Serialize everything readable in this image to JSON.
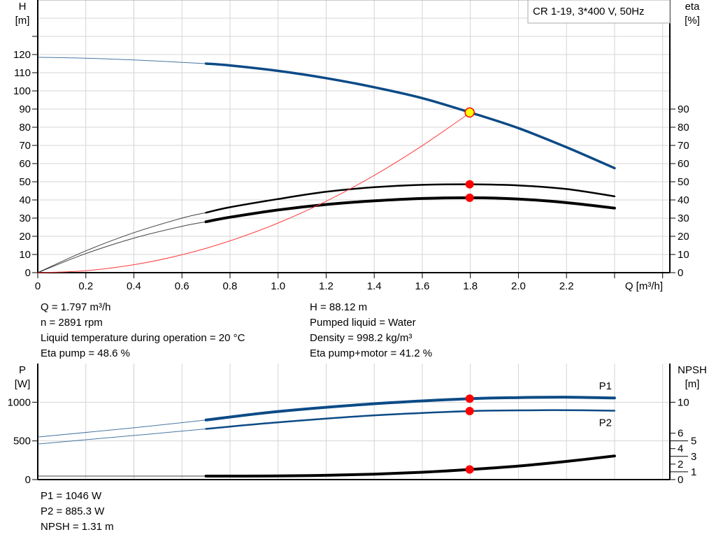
{
  "chart_data": [
    {
      "type": "line",
      "title": "CR 1-19, 3*400 V, 50Hz",
      "xlabel": "Q [m³/h]",
      "ylabel_left": "H\n[m]",
      "ylabel_right": "eta\n[%]",
      "xlim": [
        0,
        2.63
      ],
      "ylim_left": [
        0,
        150
      ],
      "ylim_right": [
        0,
        150
      ],
      "xticks": [
        "0",
        "0.2",
        "0.4",
        "0.6",
        "0.8",
        "1.0",
        "1.2",
        "1.4",
        "1.6",
        "1.8",
        "2.0",
        "2.2"
      ],
      "yticks_left": [
        "0",
        "10",
        "20",
        "30",
        "40",
        "50",
        "60",
        "70",
        "80",
        "90",
        "100",
        "110",
        "120"
      ],
      "yticks_right": [
        "0",
        "10",
        "20",
        "30",
        "40",
        "50",
        "60",
        "70",
        "80",
        "90"
      ],
      "grid": true,
      "series": [
        {
          "key": "H",
          "color": "#0b4a86",
          "x": [
            0,
            0.2,
            0.4,
            0.6,
            0.7,
            0.8,
            1.0,
            1.2,
            1.4,
            1.6,
            1.8,
            2.0,
            2.2,
            2.4
          ],
          "y": [
            118.5,
            118,
            117,
            115.7,
            115,
            114,
            111,
            107,
            102,
            96,
            88.1,
            79.5,
            69,
            57.5
          ],
          "thick_from": 0.7
        },
        {
          "key": "eta_pump",
          "color": "#000000",
          "x": [
            0,
            0.2,
            0.4,
            0.6,
            0.7,
            0.8,
            1.0,
            1.2,
            1.4,
            1.6,
            1.8,
            2.0,
            2.2,
            2.4
          ],
          "y": [
            0,
            12,
            22,
            30,
            33,
            36,
            40.5,
            44.5,
            47,
            48.3,
            48.6,
            48,
            46,
            42
          ],
          "thick_from": 0.7
        },
        {
          "key": "eta_total",
          "color": "#000000",
          "x": [
            0,
            0.2,
            0.4,
            0.6,
            0.7,
            0.8,
            1.0,
            1.2,
            1.4,
            1.6,
            1.8,
            2.0,
            2.2,
            2.4
          ],
          "y": [
            0,
            10.5,
            19,
            25.5,
            28,
            30.5,
            34.5,
            37.5,
            39.5,
            40.8,
            41.2,
            40.5,
            38.5,
            35.5
          ],
          "thick_from": 0.7,
          "heavy": true
        },
        {
          "key": "system",
          "color": "#ff3b3b",
          "x": [
            0,
            0.2,
            0.4,
            0.6,
            0.8,
            1.0,
            1.2,
            1.4,
            1.6,
            1.8
          ],
          "y": [
            0,
            1.09,
            4.37,
            9.83,
            17.5,
            27.3,
            39.3,
            53.5,
            69.9,
            88.1
          ]
        }
      ],
      "duty_point": {
        "Q": 1.797,
        "H": 88.12,
        "eta_pump": 48.6,
        "eta_total": 41.2
      }
    },
    {
      "type": "line",
      "ylabel_left": "P\n[W]",
      "ylabel_right": "NPSH\n[m]",
      "xlim": [
        0,
        2.63
      ],
      "ylim_left": [
        0,
        1500
      ],
      "ylim_right": [
        0,
        15
      ],
      "yticks_left": [
        "0",
        "500",
        "1000"
      ],
      "yticks_right": [
        "0",
        "1",
        "2",
        "3",
        "4",
        "5",
        "6",
        "10"
      ],
      "grid": true,
      "series": [
        {
          "key": "P1",
          "name": "P1",
          "color": "#0b4a86",
          "x": [
            0,
            0.4,
            0.7,
            1.0,
            1.4,
            1.8,
            2.0,
            2.2,
            2.4
          ],
          "y": [
            550,
            670,
            770,
            880,
            980,
            1046,
            1060,
            1065,
            1055
          ],
          "thick_from": 0.7,
          "heavy": true
        },
        {
          "key": "P2",
          "name": "P2",
          "color": "#0b4a86",
          "x": [
            0,
            0.4,
            0.7,
            1.0,
            1.4,
            1.8,
            2.0,
            2.2,
            2.4
          ],
          "y": [
            460,
            570,
            655,
            740,
            830,
            885.3,
            895,
            897,
            890
          ],
          "thick_from": 0.7
        },
        {
          "key": "NPSH",
          "color": "#000000",
          "axis": "right",
          "x": [
            0,
            0.7,
            1.0,
            1.2,
            1.4,
            1.6,
            1.8,
            2.0,
            2.2,
            2.4
          ],
          "y": [
            0.45,
            0.45,
            0.47,
            0.55,
            0.7,
            0.95,
            1.31,
            1.75,
            2.35,
            3.05
          ],
          "thick_from": 0.7,
          "heavy": true
        }
      ],
      "duty_point": {
        "Q": 1.797,
        "P1": 1046,
        "P2": 885.3,
        "NPSH": 1.31
      }
    }
  ],
  "results": {
    "left": [
      "Q = 1.797 m³/h",
      "n = 2891 rpm",
      "Liquid temperature during operation = 20 °C",
      "Eta pump = 48.6 %"
    ],
    "right": [
      "H = 88.12 m",
      "Pumped liquid = Water",
      "Density = 998.2 kg/m³",
      "Eta pump+motor = 41.2 %"
    ],
    "power": [
      "P1 = 1046 W",
      "P2 = 885.3 W",
      "NPSH = 1.31 m"
    ]
  },
  "colors": {
    "grid": "#d4d4d4",
    "duty_marker": "#ff0000",
    "duty_fill": "#ffff00"
  }
}
